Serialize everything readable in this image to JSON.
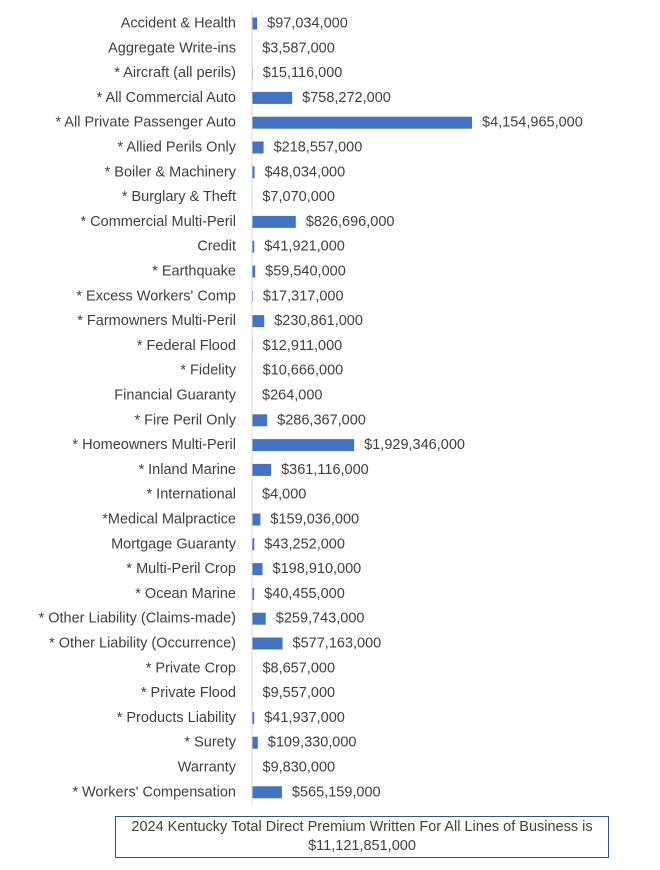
{
  "chart_data": {
    "type": "bar",
    "orientation": "horizontal",
    "title": "",
    "xlabel": "",
    "ylabel": "",
    "grid": false,
    "legend": "none",
    "bar_color": "#4472c4",
    "axis_color": "#d9d9d9",
    "xlim": [
      0,
      4154965000
    ],
    "categories": [
      "Accident & Health",
      "Aggregate Write-ins",
      "* Aircraft (all perils)",
      "* All Commercial Auto",
      "* All Private Passenger Auto",
      "* Allied Perils Only",
      "* Boiler & Machinery",
      "* Burglary & Theft",
      "* Commercial Multi-Peril",
      "Credit",
      "* Earthquake",
      "* Excess Workers' Comp",
      "* Farmowners Multi-Peril",
      "* Federal Flood",
      "* Fidelity",
      "Financial Guaranty",
      "* Fire Peril Only",
      "* Homeowners Multi-Peril",
      "* Inland Marine",
      "* International",
      "*Medical Malpractice",
      "Mortgage Guaranty",
      "* Multi-Peril Crop",
      "* Ocean Marine",
      "* Other Liability (Claims-made)",
      "* Other Liability (Occurrence)",
      "* Private Crop",
      "* Private Flood",
      "* Products Liability",
      "* Surety",
      "Warranty",
      "* Workers' Compensation"
    ],
    "values": [
      97034000,
      3587000,
      15116000,
      758272000,
      4154965000,
      218557000,
      48034000,
      7070000,
      826696000,
      41921000,
      59540000,
      17317000,
      230861000,
      12911000,
      10666000,
      264000,
      286367000,
      1929346000,
      361116000,
      4000,
      159036000,
      43252000,
      198910000,
      40455000,
      259743000,
      577163000,
      8657000,
      9557000,
      41937000,
      109330000,
      9830000,
      565159000
    ],
    "value_labels": [
      "$97,034,000",
      "$3,587,000",
      "$15,116,000",
      "$758,272,000",
      "$4,154,965,000",
      "$218,557,000",
      "$48,034,000",
      "$7,070,000",
      "$826,696,000",
      "$41,921,000",
      "$59,540,000",
      "$17,317,000",
      "$230,861,000",
      "$12,911,000",
      "$10,666,000",
      "$264,000",
      "$286,367,000",
      "$1,929,346,000",
      "$361,116,000",
      "$4,000",
      "$159,036,000",
      "$43,252,000",
      "$198,910,000",
      "$40,455,000",
      "$259,743,000",
      "$577,163,000",
      "$8,657,000",
      "$9,557,000",
      "$41,937,000",
      "$109,330,000",
      "$9,830,000",
      "$565,159,000"
    ]
  },
  "total_note": {
    "line1": "2024 Kentucky Total Direct Premium Written For All Lines of Business is",
    "line2": "$11,121,851,000"
  }
}
